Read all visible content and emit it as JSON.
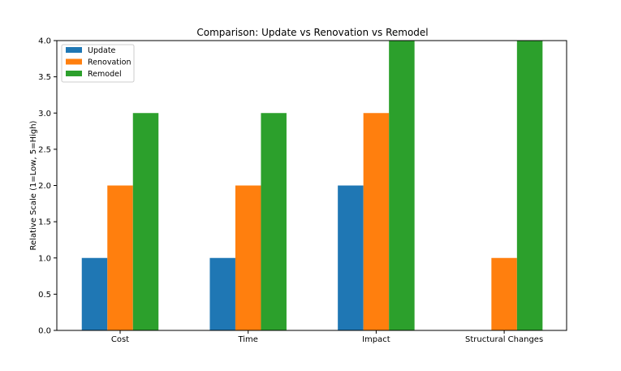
{
  "chart_data": {
    "type": "bar",
    "title": "Comparison: Update vs Renovation vs Remodel",
    "xlabel": "",
    "ylabel": "Relative Scale (1=Low, 5=High)",
    "categories": [
      "Cost",
      "Time",
      "Impact",
      "Structural Changes"
    ],
    "series": [
      {
        "name": "Update",
        "color": "#1f77b4",
        "values": [
          1,
          1,
          2,
          0
        ]
      },
      {
        "name": "Renovation",
        "color": "#ff7f0e",
        "values": [
          2,
          2,
          3,
          1
        ]
      },
      {
        "name": "Remodel",
        "color": "#2ca02c",
        "values": [
          3,
          3,
          4,
          4
        ]
      }
    ],
    "ylim": [
      0,
      4.0
    ],
    "yticks": [
      "0.0",
      "0.5",
      "1.0",
      "1.5",
      "2.0",
      "2.5",
      "3.0",
      "3.5",
      "4.0"
    ],
    "grid": false,
    "legend_position": "top-left"
  }
}
